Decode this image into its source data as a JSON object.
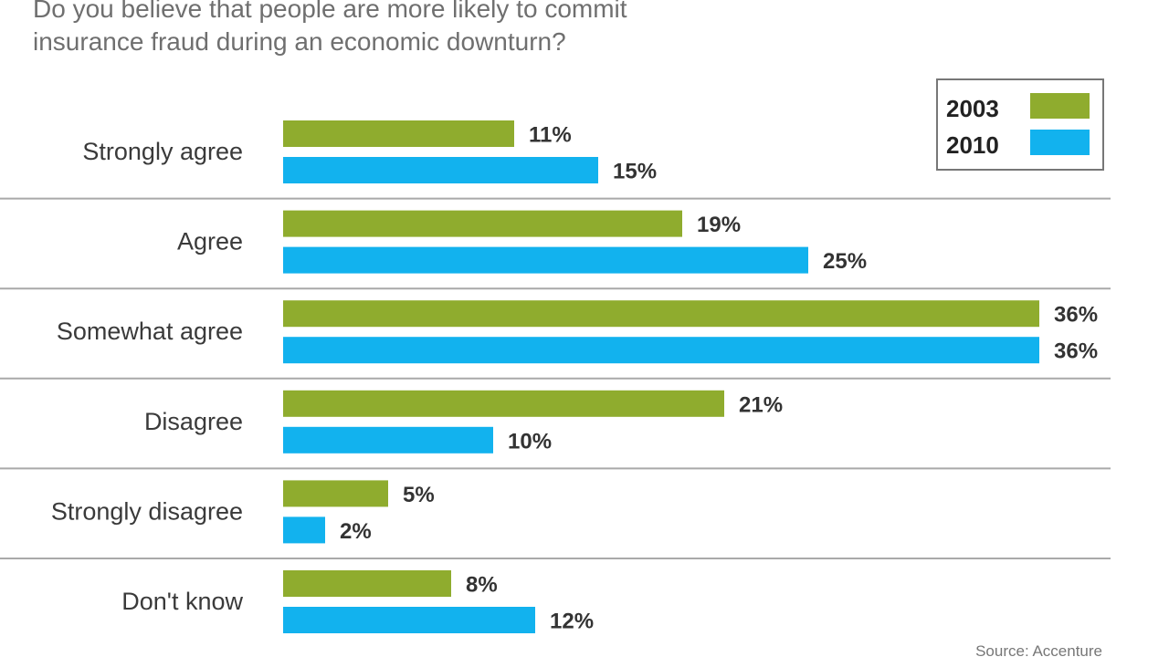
{
  "chart_data": {
    "type": "bar",
    "orientation": "horizontal",
    "title_lines": [
      "Do you believe that people are more likely to commit",
      "insurance fraud during an economic downturn?"
    ],
    "categories": [
      "Strongly agree",
      "Agree",
      "Somewhat agree",
      "Disagree",
      "Strongly disagree",
      "Don't know"
    ],
    "series": [
      {
        "name": "2003",
        "color": "#8fac2e",
        "values": [
          11,
          19,
          36,
          21,
          5,
          8
        ],
        "labels": [
          "11%",
          "19%",
          "36%",
          "21%",
          "5%",
          "8%"
        ]
      },
      {
        "name": "2010",
        "color": "#12b2ee",
        "values": [
          15,
          25,
          36,
          10,
          2,
          12
        ],
        "labels": [
          "15%",
          "25%",
          "36%",
          "10%",
          "2%",
          "12%"
        ]
      }
    ],
    "xlim": [
      0,
      36
    ],
    "grid": false,
    "legend_position": "top-right",
    "source": "Source: Accenture"
  }
}
